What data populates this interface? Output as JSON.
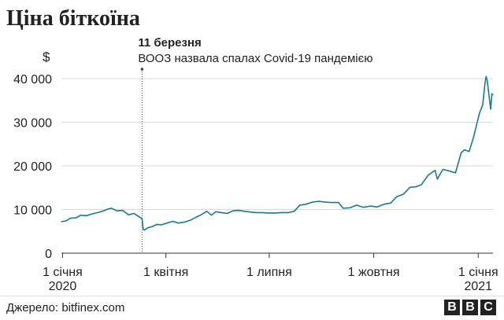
{
  "chart_data": {
    "type": "line",
    "title": "Ціна біткоїна",
    "ylabel": "$",
    "ylim": [
      0,
      40000
    ],
    "yticks": [
      0,
      10000,
      20000,
      30000,
      40000
    ],
    "ytick_labels": [
      "0",
      "10 000",
      "20 000",
      "30 000",
      "40 000"
    ],
    "xlim": [
      "2019-12-31",
      "2021-01-14"
    ],
    "xticks": [
      {
        "date": "2020-01-01",
        "label": "1 січня",
        "sublabel": "2020"
      },
      {
        "date": "2020-04-01",
        "label": "1 квітня",
        "sublabel": ""
      },
      {
        "date": "2020-07-01",
        "label": "1 липня",
        "sublabel": ""
      },
      {
        "date": "2020-10-01",
        "label": "1 жовтня",
        "sublabel": ""
      },
      {
        "date": "2021-01-01",
        "label": "1 січня",
        "sublabel": "2021"
      }
    ],
    "grid": true,
    "line_color": "#1a7a8c",
    "annotation": {
      "date": "2020-03-11",
      "label_bold": "11 березня",
      "label_text": "ВООЗ назвала спалах Covid-19 пандемією"
    },
    "series": [
      {
        "x": [
          "2019-12-31",
          "2020-01-04",
          "2020-01-08",
          "2020-01-13",
          "2020-01-17",
          "2020-01-22",
          "2020-01-27",
          "2020-02-01",
          "2020-02-06",
          "2020-02-10",
          "2020-02-13",
          "2020-02-18",
          "2020-02-23",
          "2020-02-28",
          "2020-03-04",
          "2020-03-08",
          "2020-03-11",
          "2020-03-12",
          "2020-03-13",
          "2020-03-16",
          "2020-03-20",
          "2020-03-24",
          "2020-03-28",
          "2020-04-02",
          "2020-04-07",
          "2020-04-12",
          "2020-04-17",
          "2020-04-22",
          "2020-04-28",
          "2020-05-02",
          "2020-05-07",
          "2020-05-11",
          "2020-05-15",
          "2020-05-20",
          "2020-05-25",
          "2020-05-30",
          "2020-06-04",
          "2020-06-09",
          "2020-06-15",
          "2020-06-20",
          "2020-06-25",
          "2020-06-30",
          "2020-07-06",
          "2020-07-12",
          "2020-07-18",
          "2020-07-23",
          "2020-07-28",
          "2020-08-02",
          "2020-08-08",
          "2020-08-14",
          "2020-08-19",
          "2020-08-25",
          "2020-08-31",
          "2020-09-04",
          "2020-09-10",
          "2020-09-16",
          "2020-09-22",
          "2020-09-28",
          "2020-10-04",
          "2020-10-10",
          "2020-10-16",
          "2020-10-21",
          "2020-10-27",
          "2020-11-02",
          "2020-11-07",
          "2020-11-12",
          "2020-11-18",
          "2020-11-24",
          "2020-11-26",
          "2020-12-01",
          "2020-12-07",
          "2020-12-12",
          "2020-12-17",
          "2020-12-20",
          "2020-12-24",
          "2020-12-28",
          "2021-01-02",
          "2021-01-05",
          "2021-01-07",
          "2021-01-08",
          "2021-01-09",
          "2021-01-11",
          "2021-01-12",
          "2021-01-13",
          "2021-01-14"
        ],
        "y": [
          7200,
          7400,
          8000,
          8100,
          8700,
          8600,
          9000,
          9300,
          9700,
          10100,
          10300,
          9700,
          9800,
          8800,
          9100,
          8400,
          7900,
          5500,
          5300,
          5800,
          6100,
          6600,
          6500,
          6900,
          7300,
          6900,
          7100,
          7500,
          8300,
          8800,
          9600,
          8700,
          9500,
          9300,
          9100,
          9700,
          9800,
          9600,
          9400,
          9300,
          9300,
          9200,
          9200,
          9300,
          9300,
          9600,
          11000,
          11200,
          11700,
          11900,
          11700,
          11600,
          11600,
          10300,
          10400,
          11000,
          10500,
          10800,
          10600,
          11200,
          11500,
          12900,
          13500,
          15100,
          15200,
          15700,
          17900,
          19000,
          17000,
          19200,
          18800,
          18400,
          23000,
          23700,
          23300,
          26700,
          32000,
          34000,
          39000,
          40500,
          39500,
          35000,
          33000,
          36500,
          36300
        ]
      }
    ]
  },
  "source": "Джерело: bitfinex.com",
  "bbc_logo": [
    "B",
    "B",
    "C"
  ]
}
